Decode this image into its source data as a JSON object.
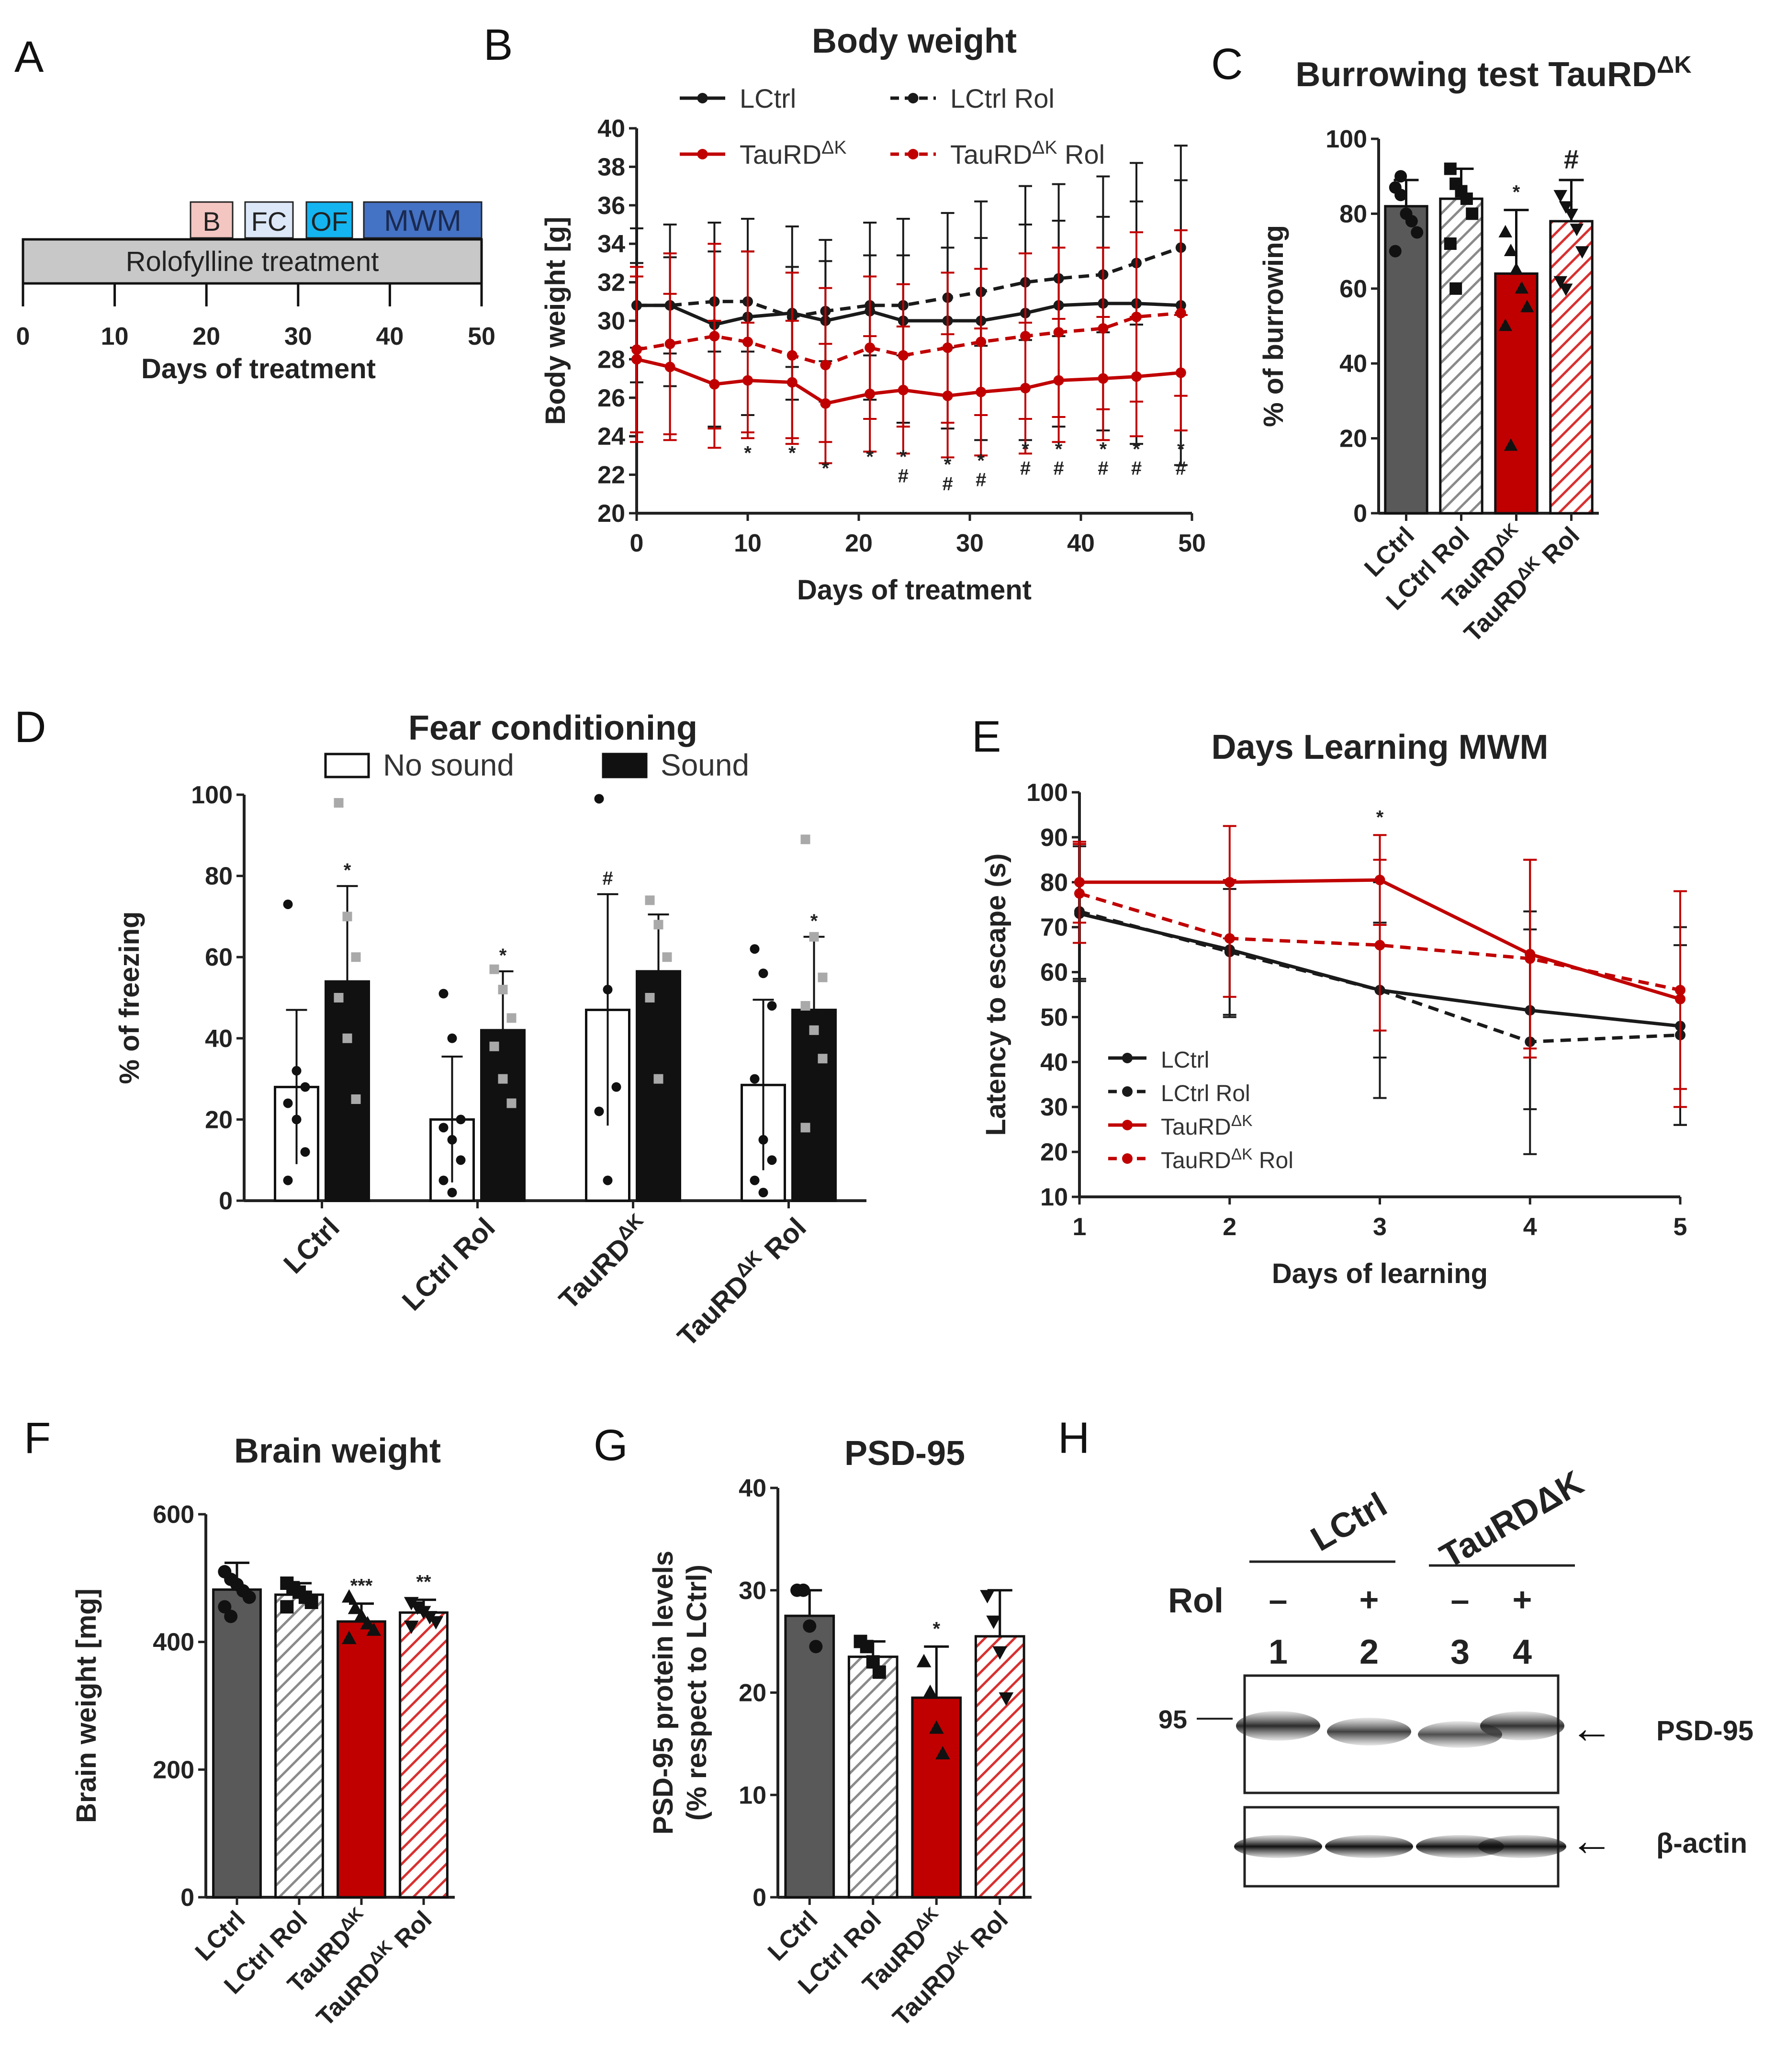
{
  "colors": {
    "black": "#1a1a1a",
    "dark_gray": "#595959",
    "light_gray": "#bfbfbf",
    "red": "#c00000",
    "dark_red": "#8b0000",
    "pink": "#f8b9b3",
    "bar_gray": "#d0d0d0",
    "cyan": "#14b4f0",
    "blue": "#4472c4",
    "light_blue": "#dce8f8"
  },
  "panels": {
    "A": "A",
    "B": "B",
    "C": "C",
    "D": "D",
    "E": "E",
    "F": "F",
    "G": "G",
    "H": "H"
  },
  "timeline": {
    "boxes": [
      "B",
      "FC",
      "OF",
      "MWM"
    ],
    "treatment_label": "Rolofylline treatment",
    "ticks": [
      "0",
      "10",
      "20",
      "30",
      "40",
      "50"
    ],
    "xlabel": "Days of treatment"
  },
  "western": {
    "groups": [
      "LCtrl",
      "TauRDΔK"
    ],
    "rol_label": "Rol",
    "signs": [
      "–",
      "+",
      "–",
      "+"
    ],
    "lanes": [
      "1",
      "2",
      "3",
      "4"
    ],
    "marker": "95",
    "bands": [
      "PSD-95",
      "β-actin"
    ],
    "arrow": "←",
    "psd_intensity": [
      0.9,
      0.75,
      0.65,
      0.85
    ]
  },
  "chart_data": [
    {
      "id": "B",
      "type": "line",
      "title": "Body weight",
      "xlabel": "Days of treatment",
      "ylabel": "Body weight [g]",
      "xlim": [
        0,
        50
      ],
      "ylim": [
        20,
        40
      ],
      "xticks": [
        "0",
        "10",
        "20",
        "30",
        "40",
        "50"
      ],
      "yticks": [
        "20",
        "22",
        "24",
        "26",
        "28",
        "30",
        "32",
        "34",
        "36",
        "38",
        "40"
      ],
      "x": [
        0,
        3,
        7,
        10,
        14,
        17,
        21,
        24,
        28,
        31,
        35,
        38,
        42,
        45,
        49
      ],
      "series": [
        {
          "name": "LCtrl",
          "legend": "LCtrl",
          "color": "#1a1a1a",
          "dash": false,
          "values": [
            30.8,
            30.8,
            29.8,
            30.2,
            30.4,
            30.0,
            30.5,
            30.0,
            30.0,
            30.0,
            30.4,
            30.8,
            30.9,
            30.9,
            30.8
          ],
          "err": [
            4.0,
            4.2,
            5.3,
            5.1,
            4.5,
            4.2,
            4.6,
            5.3,
            5.6,
            6.2,
            6.6,
            6.3,
            6.6,
            7.3,
            8.3
          ]
        },
        {
          "name": "LCtrl Rol",
          "legend": "LCtrl Rol",
          "color": "#1a1a1a",
          "dash": true,
          "values": [
            30.8,
            30.8,
            31.0,
            31.0,
            30.2,
            30.5,
            30.8,
            30.8,
            31.2,
            31.5,
            32.0,
            32.2,
            32.4,
            33.0,
            33.8
          ],
          "err": [
            2.2,
            2.5,
            2.6,
            2.6,
            2.6,
            2.6,
            2.6,
            2.6,
            2.6,
            2.8,
            3.0,
            3.0,
            3.0,
            3.2,
            3.5
          ]
        },
        {
          "name": "TauRDΔK",
          "legend": "TauRDΔK",
          "color": "#c00000",
          "dash": false,
          "values": [
            28.0,
            27.6,
            26.7,
            26.9,
            26.8,
            25.7,
            26.2,
            26.4,
            26.1,
            26.3,
            26.5,
            26.9,
            27.0,
            27.1,
            27.3
          ],
          "err": [
            4.3,
            3.8,
            3.3,
            3.0,
            3.2,
            3.1,
            3.0,
            3.3,
            3.2,
            3.3,
            3.4,
            3.2,
            3.2,
            3.1,
            3.0
          ]
        },
        {
          "name": "TauRDΔK Rol",
          "legend": "TauRDΔK Rol",
          "color": "#c00000",
          "dash": true,
          "values": [
            28.5,
            28.8,
            29.2,
            28.9,
            28.2,
            27.7,
            28.6,
            28.2,
            28.6,
            28.9,
            29.2,
            29.4,
            29.6,
            30.2,
            30.4
          ],
          "err": [
            4.3,
            4.7,
            4.8,
            4.7,
            4.3,
            4.0,
            3.7,
            3.7,
            3.9,
            3.8,
            4.3,
            4.4,
            4.2,
            4.4,
            4.3
          ]
        }
      ],
      "annotations": [
        {
          "x": 10,
          "y": 22.8,
          "text": "*"
        },
        {
          "x": 14,
          "y": 22.8,
          "text": "*"
        },
        {
          "x": 17,
          "y": 22.0,
          "text": "*"
        },
        {
          "x": 21,
          "y": 22.6,
          "text": "*"
        },
        {
          "x": 24,
          "y": 22.6,
          "text": "*"
        },
        {
          "x": 24,
          "y": 21.6,
          "text": "#"
        },
        {
          "x": 28,
          "y": 22.2,
          "text": "*"
        },
        {
          "x": 28,
          "y": 21.2,
          "text": "#"
        },
        {
          "x": 31,
          "y": 22.4,
          "text": "*"
        },
        {
          "x": 31,
          "y": 21.4,
          "text": "#"
        },
        {
          "x": 35,
          "y": 23.0,
          "text": "*"
        },
        {
          "x": 35,
          "y": 22.0,
          "text": "#"
        },
        {
          "x": 38,
          "y": 23.0,
          "text": "*"
        },
        {
          "x": 38,
          "y": 22.0,
          "text": "#"
        },
        {
          "x": 42,
          "y": 23.0,
          "text": "*"
        },
        {
          "x": 42,
          "y": 22.0,
          "text": "#"
        },
        {
          "x": 45,
          "y": 23.0,
          "text": "*"
        },
        {
          "x": 45,
          "y": 22.0,
          "text": "#"
        },
        {
          "x": 49,
          "y": 23.0,
          "text": "*"
        },
        {
          "x": 49,
          "y": 22.0,
          "text": "#"
        }
      ]
    },
    {
      "id": "C",
      "type": "bar",
      "title": "Burrowing test TauRDΔK",
      "ylabel": "% of burrowing",
      "ylim": [
        0,
        100
      ],
      "yticks": [
        "0",
        "20",
        "40",
        "60",
        "80",
        "100"
      ],
      "categories": [
        "LCtrl",
        "LCtrl Rol",
        "TauRDΔK",
        "TauRDΔK Rol"
      ],
      "values": [
        82,
        84,
        64,
        78
      ],
      "err": [
        7,
        8,
        17,
        11
      ],
      "fills": [
        "#595959",
        "hatch-gray",
        "#c00000",
        "hatch-red"
      ],
      "points": [
        [
          87,
          85,
          80,
          78,
          75,
          70,
          90
        ],
        [
          92,
          88,
          86,
          84,
          80,
          72,
          60
        ],
        [
          75,
          70,
          65,
          60,
          55,
          50,
          18
        ],
        [
          85,
          82,
          80,
          76,
          70,
          62,
          60
        ]
      ],
      "annotations": [
        {
          "cat": 2,
          "text": "*"
        },
        {
          "cat": 3,
          "text": "#"
        }
      ]
    },
    {
      "id": "D",
      "type": "bar",
      "title": "Fear conditioning",
      "ylabel": "% of freezing",
      "ylim": [
        0,
        100
      ],
      "yticks": [
        "0",
        "20",
        "40",
        "60",
        "80",
        "100"
      ],
      "categories": [
        "LCtrl",
        "LCtrl Rol",
        "TauRDΔK",
        "TauRDΔK Rol"
      ],
      "series": [
        {
          "name": "No sound",
          "color": "#ffffff",
          "values": [
            28,
            20,
            47,
            28.5
          ],
          "err": [
            19,
            15.5,
            28.5,
            21
          ],
          "points": [
            [
              73,
              32,
              28,
              24,
              20,
              12,
              5
            ],
            [
              51,
              40,
              20,
              18,
              15,
              10,
              5,
              2
            ],
            [
              99,
              52,
              28,
              22,
              5
            ],
            [
              62,
              56,
              48,
              30,
              15,
              10,
              5,
              2
            ]
          ]
        },
        {
          "name": "Sound",
          "color": "#111111",
          "values": [
            54,
            42,
            56.5,
            47
          ],
          "err": [
            23.5,
            14.5,
            14,
            18
          ],
          "points": [
            [
              98,
              70,
              60,
              50,
              40,
              25
            ],
            [
              57,
              52,
              45,
              38,
              30,
              24
            ],
            [
              74,
              68,
              60,
              50,
              30
            ],
            [
              89,
              65,
              55,
              48,
              42,
              35,
              18
            ]
          ]
        }
      ],
      "annotations": [
        {
          "cat": 0,
          "series": 1,
          "text": "*"
        },
        {
          "cat": 1,
          "series": 1,
          "text": "*"
        },
        {
          "cat": 2,
          "series": 0,
          "text": "#"
        },
        {
          "cat": 3,
          "series": 1,
          "text": "*"
        }
      ]
    },
    {
      "id": "E",
      "type": "line",
      "title": "Days Learning MWM",
      "xlabel": "Days of learning",
      "ylabel": "Latency to escape (s)",
      "xlim": [
        1,
        5
      ],
      "ylim": [
        10,
        100
      ],
      "xticks": [
        "1",
        "2",
        "3",
        "4",
        "5"
      ],
      "yticks": [
        "10",
        "20",
        "30",
        "40",
        "50",
        "60",
        "70",
        "80",
        "90",
        "100"
      ],
      "x": [
        1,
        2,
        3,
        4,
        5
      ],
      "series": [
        {
          "name": "LCtrl",
          "legend": "LCtrl",
          "color": "#1a1a1a",
          "dash": false,
          "values": [
            73,
            65,
            56,
            51.5,
            48
          ],
          "err": [
            15,
            15,
            24,
            22,
            22
          ]
        },
        {
          "name": "LCtrl Rol",
          "legend": "LCtrl Rol",
          "color": "#1a1a1a",
          "dash": true,
          "values": [
            73.5,
            64.5,
            56,
            44.5,
            46
          ],
          "err": [
            15,
            14,
            15,
            25,
            20
          ]
        },
        {
          "name": "TauRDΔK",
          "legend": "TauRDΔK",
          "color": "#c00000",
          "dash": false,
          "values": [
            80,
            80,
            80.5,
            64,
            54
          ],
          "err": [
            9,
            12.5,
            10,
            21,
            24
          ]
        },
        {
          "name": "TauRDΔK Rol",
          "legend": "TauRDΔK Rol",
          "color": "#c00000",
          "dash": true,
          "values": [
            77.5,
            67.5,
            66,
            63,
            56
          ],
          "err": [
            11,
            13,
            19,
            22,
            22
          ]
        }
      ],
      "annotations": [
        {
          "x": 3,
          "y": 93,
          "text": "*"
        }
      ]
    },
    {
      "id": "F",
      "type": "bar",
      "title": "Brain weight",
      "ylabel": "Brain weight [mg]",
      "ylim": [
        0,
        600
      ],
      "yticks": [
        "0",
        "200",
        "400",
        "600"
      ],
      "categories": [
        "LCtrl",
        "LCtrl Rol",
        "TauRDΔK",
        "TauRDΔK Rol"
      ],
      "values": [
        482,
        474,
        432,
        446
      ],
      "err": [
        42,
        18,
        28,
        20
      ],
      "fills": [
        "#595959",
        "hatch-gray",
        "#c00000",
        "hatch-red"
      ],
      "points": [
        [
          510,
          498,
          490,
          480,
          470,
          455,
          440
        ],
        [
          492,
          485,
          478,
          470,
          462,
          455
        ],
        [
          470,
          452,
          440,
          428,
          418,
          405
        ],
        [
          462,
          455,
          448,
          440,
          432,
          425
        ]
      ],
      "annotations": [
        {
          "cat": 2,
          "text": "***"
        },
        {
          "cat": 3,
          "text": "**"
        }
      ]
    },
    {
      "id": "G",
      "type": "bar",
      "title": "PSD-95",
      "ylabel": "PSD-95 protein levels",
      "ylabel2": "(% respect to LCtrl)",
      "ylim": [
        0,
        40
      ],
      "yticks": [
        "0",
        "10",
        "20",
        "30",
        "40"
      ],
      "categories": [
        "LCtrl",
        "LCtrl Rol",
        "TauRDΔK",
        "TauRDΔK Rol"
      ],
      "values": [
        27.5,
        23.5,
        19.5,
        25.5
      ],
      "err": [
        2.5,
        1.5,
        5,
        4.5
      ],
      "fills": [
        "#595959",
        "hatch-gray",
        "#c00000",
        "hatch-red"
      ],
      "points": [
        [
          30,
          30,
          26.5,
          24.5
        ],
        [
          25,
          24.5,
          23,
          22
        ],
        [
          23,
          20,
          16.5,
          14
        ],
        [
          29.5,
          27,
          24,
          19.5
        ]
      ],
      "annotations": [
        {
          "cat": 2,
          "text": "*"
        }
      ]
    }
  ]
}
